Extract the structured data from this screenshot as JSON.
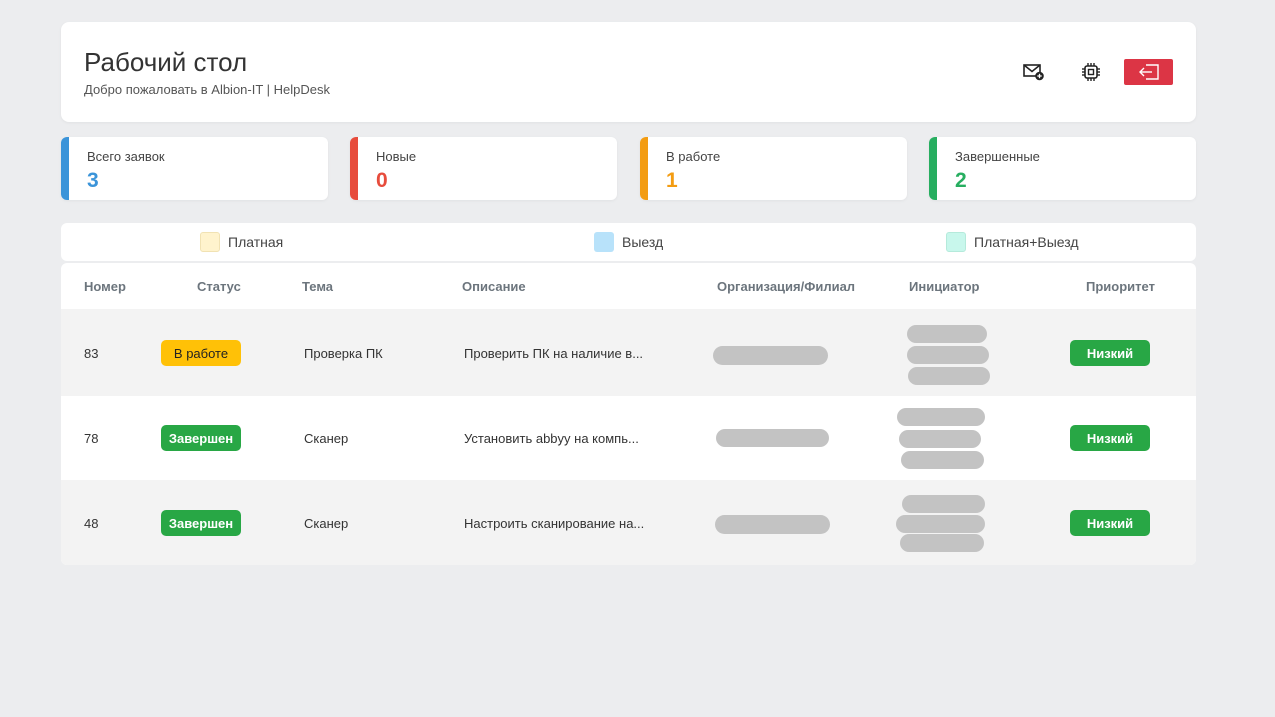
{
  "header": {
    "title": "Рабочий стол",
    "subtitle": "Добро пожаловать в Albion-IT | HelpDesk",
    "icons": [
      "mail-plus-icon",
      "chip-icon",
      "logout-icon"
    ]
  },
  "stats": [
    {
      "label": "Всего заявок",
      "value": "3",
      "color": "#3b94d9"
    },
    {
      "label": "Новые",
      "value": "0",
      "color": "#e74c3c"
    },
    {
      "label": "В работе",
      "value": "1",
      "color": "#f39c12"
    },
    {
      "label": "Завершенные",
      "value": "2",
      "color": "#27ae60"
    }
  ],
  "legend": [
    {
      "label": "Платная",
      "color": "#fff3cd"
    },
    {
      "label": "Выезд",
      "color": "#b8e2fa"
    },
    {
      "label": "Платная+Выезд",
      "color": "#c8f7ec"
    }
  ],
  "table": {
    "columns": [
      "Номер",
      "Статус",
      "Тема",
      "Описание",
      "Организация/Филиал",
      "Инициатор",
      "Приоритет"
    ],
    "rows": [
      {
        "number": "83",
        "status": "В работе",
        "topic": "Проверка ПК",
        "description": "Проверить ПК на наличие в...",
        "priority": "Низкий"
      },
      {
        "number": "78",
        "status": "Завершен",
        "topic": "Сканер",
        "description": "Установить abbyy на компь...",
        "priority": "Низкий"
      },
      {
        "number": "48",
        "status": "Завершен",
        "topic": "Сканер",
        "description": "Настроить сканирование на...",
        "priority": "Низкий"
      }
    ]
  }
}
